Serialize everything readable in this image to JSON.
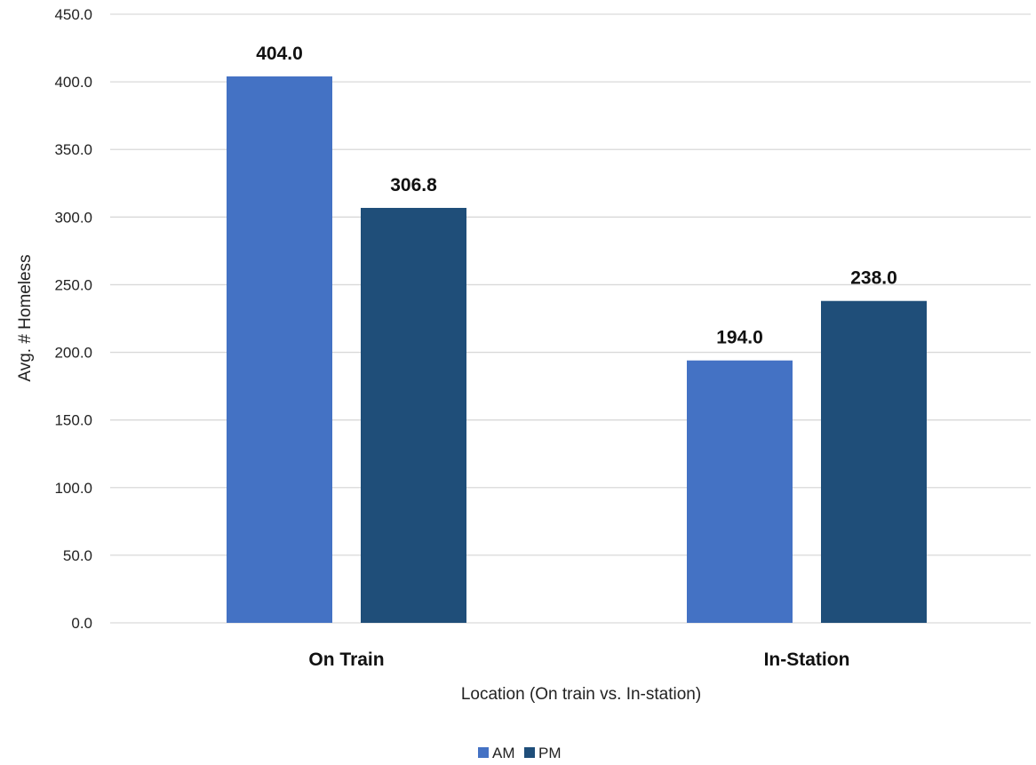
{
  "chart_data": {
    "type": "bar",
    "categories": [
      "On Train",
      "In-Station"
    ],
    "series": [
      {
        "name": "AM",
        "values": [
          404.0,
          194.0
        ],
        "color": "#4472C4"
      },
      {
        "name": "PM",
        "values": [
          306.8,
          238.0
        ],
        "color": "#1F4E79"
      }
    ],
    "xlabel": "Location (On train vs. In-station)",
    "ylabel": "Avg. # Homeless",
    "ylim": [
      0,
      450
    ],
    "yticks": [
      "0.0",
      "50.0",
      "100.0",
      "150.0",
      "200.0",
      "250.0",
      "300.0",
      "350.0",
      "400.0",
      "450.0"
    ],
    "data_labels": [
      [
        "404.0",
        "194.0"
      ],
      [
        "306.8",
        "238.0"
      ]
    ],
    "grid": true,
    "legend_position": "bottom",
    "gridline_color": "#D9D9D9"
  }
}
